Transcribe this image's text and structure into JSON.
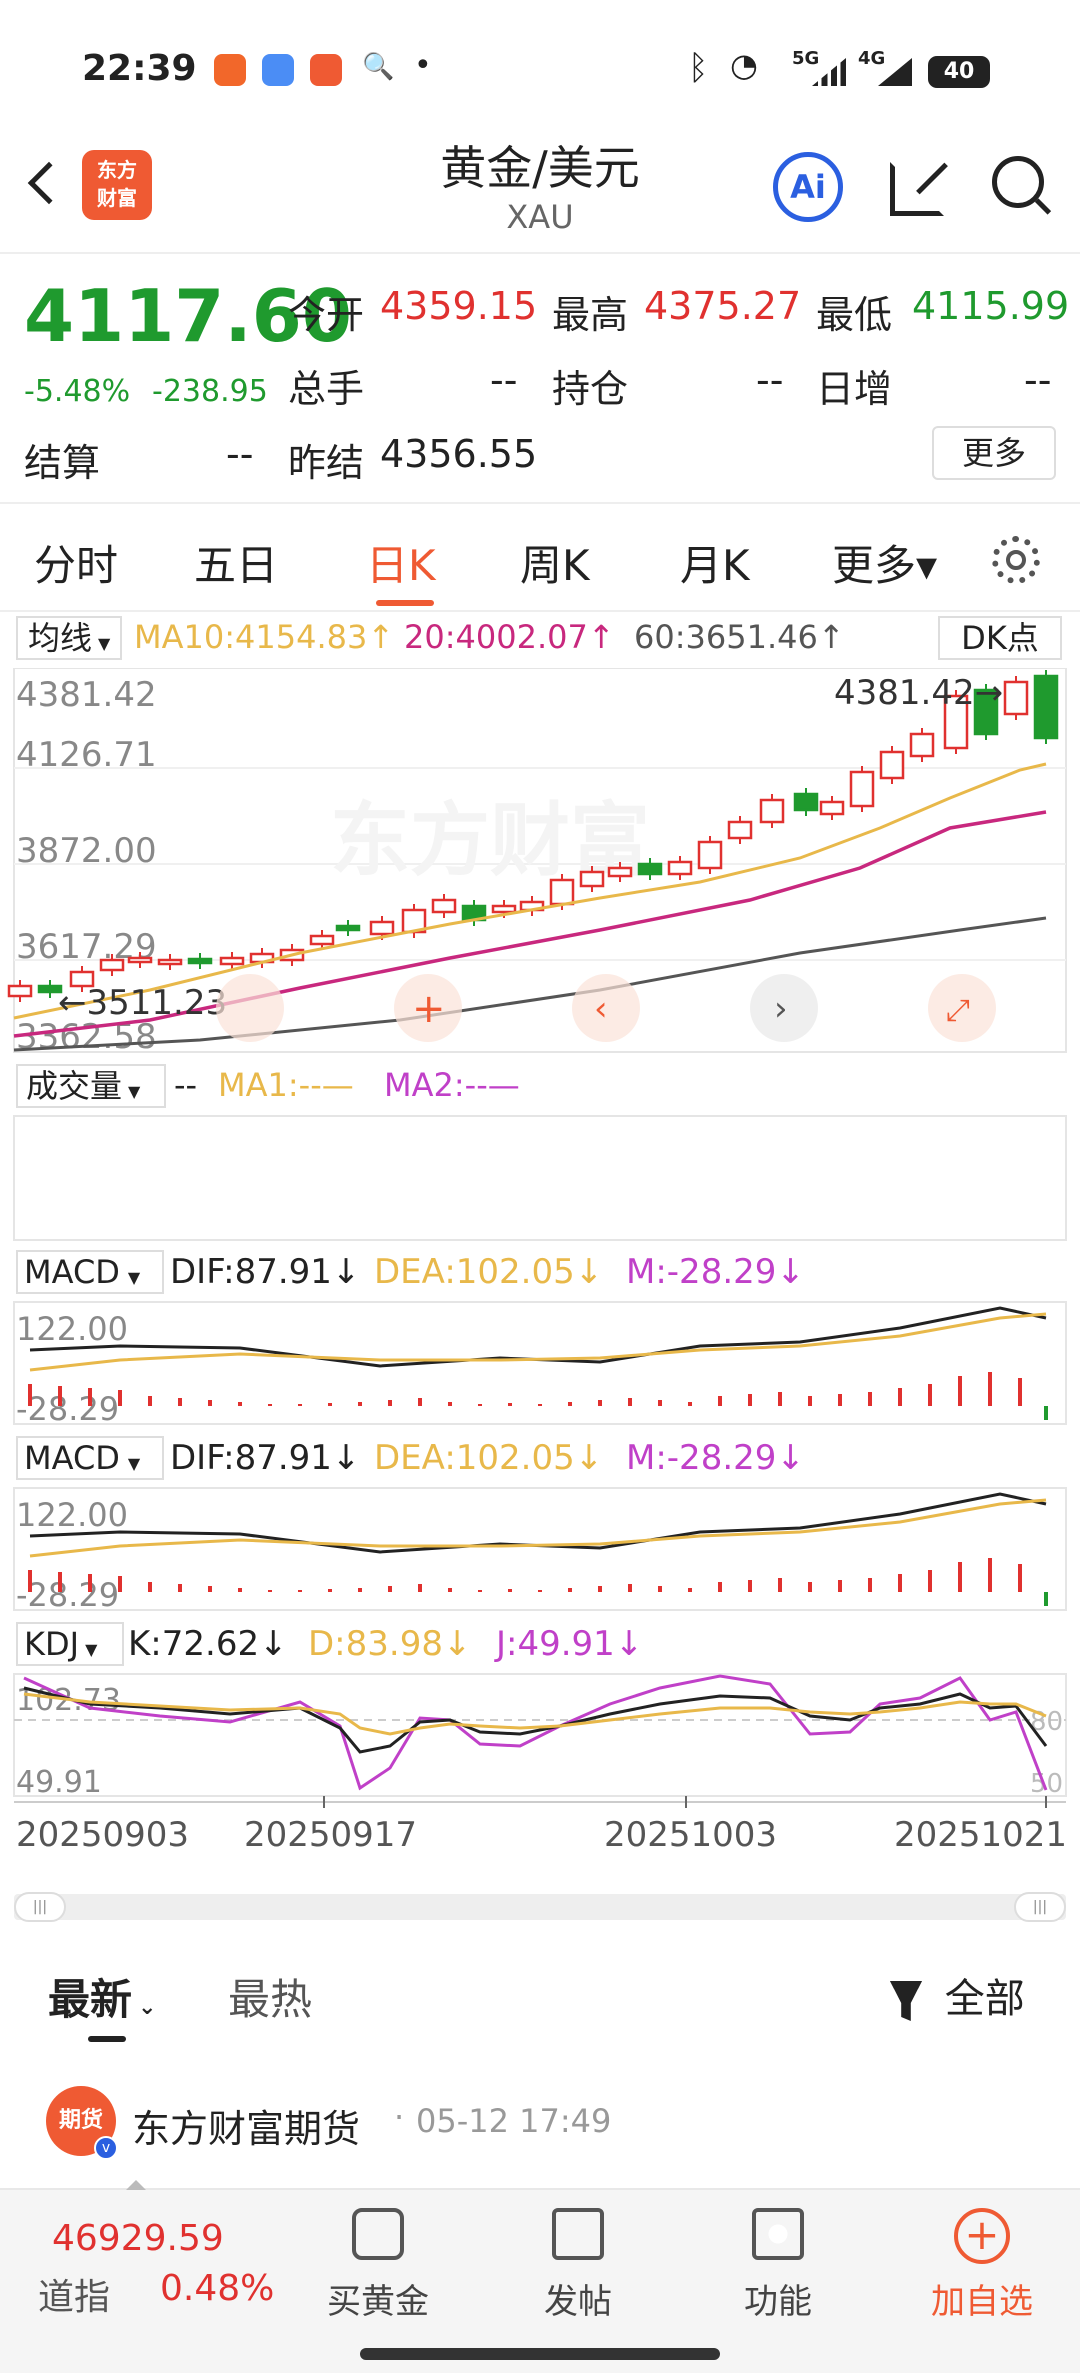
{
  "status": {
    "time": "22:39",
    "dot": "•",
    "net1": "5G",
    "net2": "4G",
    "battery": "40"
  },
  "header": {
    "back_icon": "chevron-left-icon",
    "logo_line1": "东方",
    "logo_line2": "财富",
    "title": "黄金/美元",
    "subtitle": "XAU",
    "ai_label": "Ai",
    "share_icon": "share-icon",
    "search_icon": "search-icon"
  },
  "quote": {
    "price": "4117.60",
    "change_pct": "-5.48%",
    "change": "-238.95",
    "open_label": "今开",
    "open": "4359.15",
    "high_label": "最高",
    "high": "4375.27",
    "low_label": "最低",
    "low": "4115.99",
    "volume_label": "总手",
    "volume": "--",
    "oi_label": "持仓",
    "oi": "--",
    "daily_inc_label": "日增",
    "daily_inc": "--",
    "settle_label": "结算",
    "settle": "--",
    "prev_settle_label": "昨结",
    "prev_settle": "4356.55",
    "more_button": "更多"
  },
  "tabs": [
    {
      "label": "分时"
    },
    {
      "label": "五日"
    },
    {
      "label": "日K",
      "active": true
    },
    {
      "label": "周K"
    },
    {
      "label": "月K"
    },
    {
      "label": "更多▾"
    }
  ],
  "chart": {
    "ma_dropdown": "均线",
    "ma10": "MA10:4154.83↑",
    "ma20": "20:4002.07↑",
    "ma60": "60:3651.46↑",
    "dk_button": "DK点",
    "price_labels": [
      "4381.42",
      "4126.71",
      "3872.00",
      "3617.29",
      "3362.58"
    ],
    "high_marker": "4381.42→",
    "low_marker": "←3511.23",
    "volume_dropdown": "成交量",
    "volume_dash": "--",
    "vol_ma1": "MA1:--—",
    "vol_ma2": "MA2:--—",
    "macd_dropdown": "MACD",
    "dif": "DIF:87.91↓",
    "dea": "DEA:102.05↓",
    "m": "M:-28.29↓",
    "macd_top": "122.00",
    "macd_bottom": "-28.29",
    "kdj_dropdown": "KDJ",
    "k": "K:72.62↓",
    "d": "D:83.98↓",
    "j": "J:49.91↓",
    "kdj_top": "102.73",
    "kdj_bottom": "49.91",
    "kdj_r80": "80",
    "kdj_r50": "50",
    "dates": [
      "20250903",
      "20250917",
      "20251003",
      "20251021"
    ],
    "watermark": "东方财富",
    "colors": {
      "up": "#e0312f",
      "down": "#1f9a2e",
      "ma10": "#e8b84a",
      "ma20": "#c8287e",
      "ma60": "#555555"
    }
  },
  "chart_data": {
    "type": "candlestick",
    "ylim": [
      3362.58,
      4381.42
    ],
    "high": 4381.42,
    "low": 3511.23,
    "last_close": 4117.6,
    "ma10": 4154.83,
    "ma20": 4002.07,
    "ma60": 3651.46
  },
  "news": {
    "tab_latest": "最新",
    "tab_hot": "最热",
    "filter_label": "全部",
    "author": "东方财富期货",
    "time": "05-12 17:49",
    "avatar_text": "期货"
  },
  "bottom": {
    "index_value": "46929.59",
    "index_name": "道指",
    "index_change": "0.48%",
    "buy_gold": "买黄金",
    "post": "发帖",
    "features": "功能",
    "add_watch": "加自选"
  }
}
